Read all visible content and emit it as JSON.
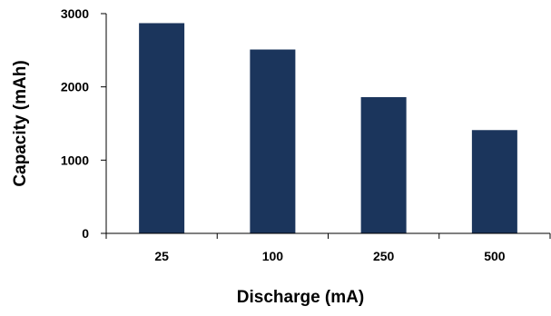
{
  "chart_data": {
    "type": "bar",
    "title": "",
    "xlabel": "Discharge (mA)",
    "ylabel": "Capacity (mAh)",
    "categories": [
      "25",
      "100",
      "250",
      "500"
    ],
    "values": [
      2870,
      2510,
      1860,
      1410
    ],
    "ylim": [
      0,
      3000
    ],
    "yticks": [
      "0",
      "1000",
      "2000",
      "3000"
    ],
    "grid": false,
    "legend": "none",
    "bar_color": "#1b355c",
    "axis_color": "#000000"
  }
}
